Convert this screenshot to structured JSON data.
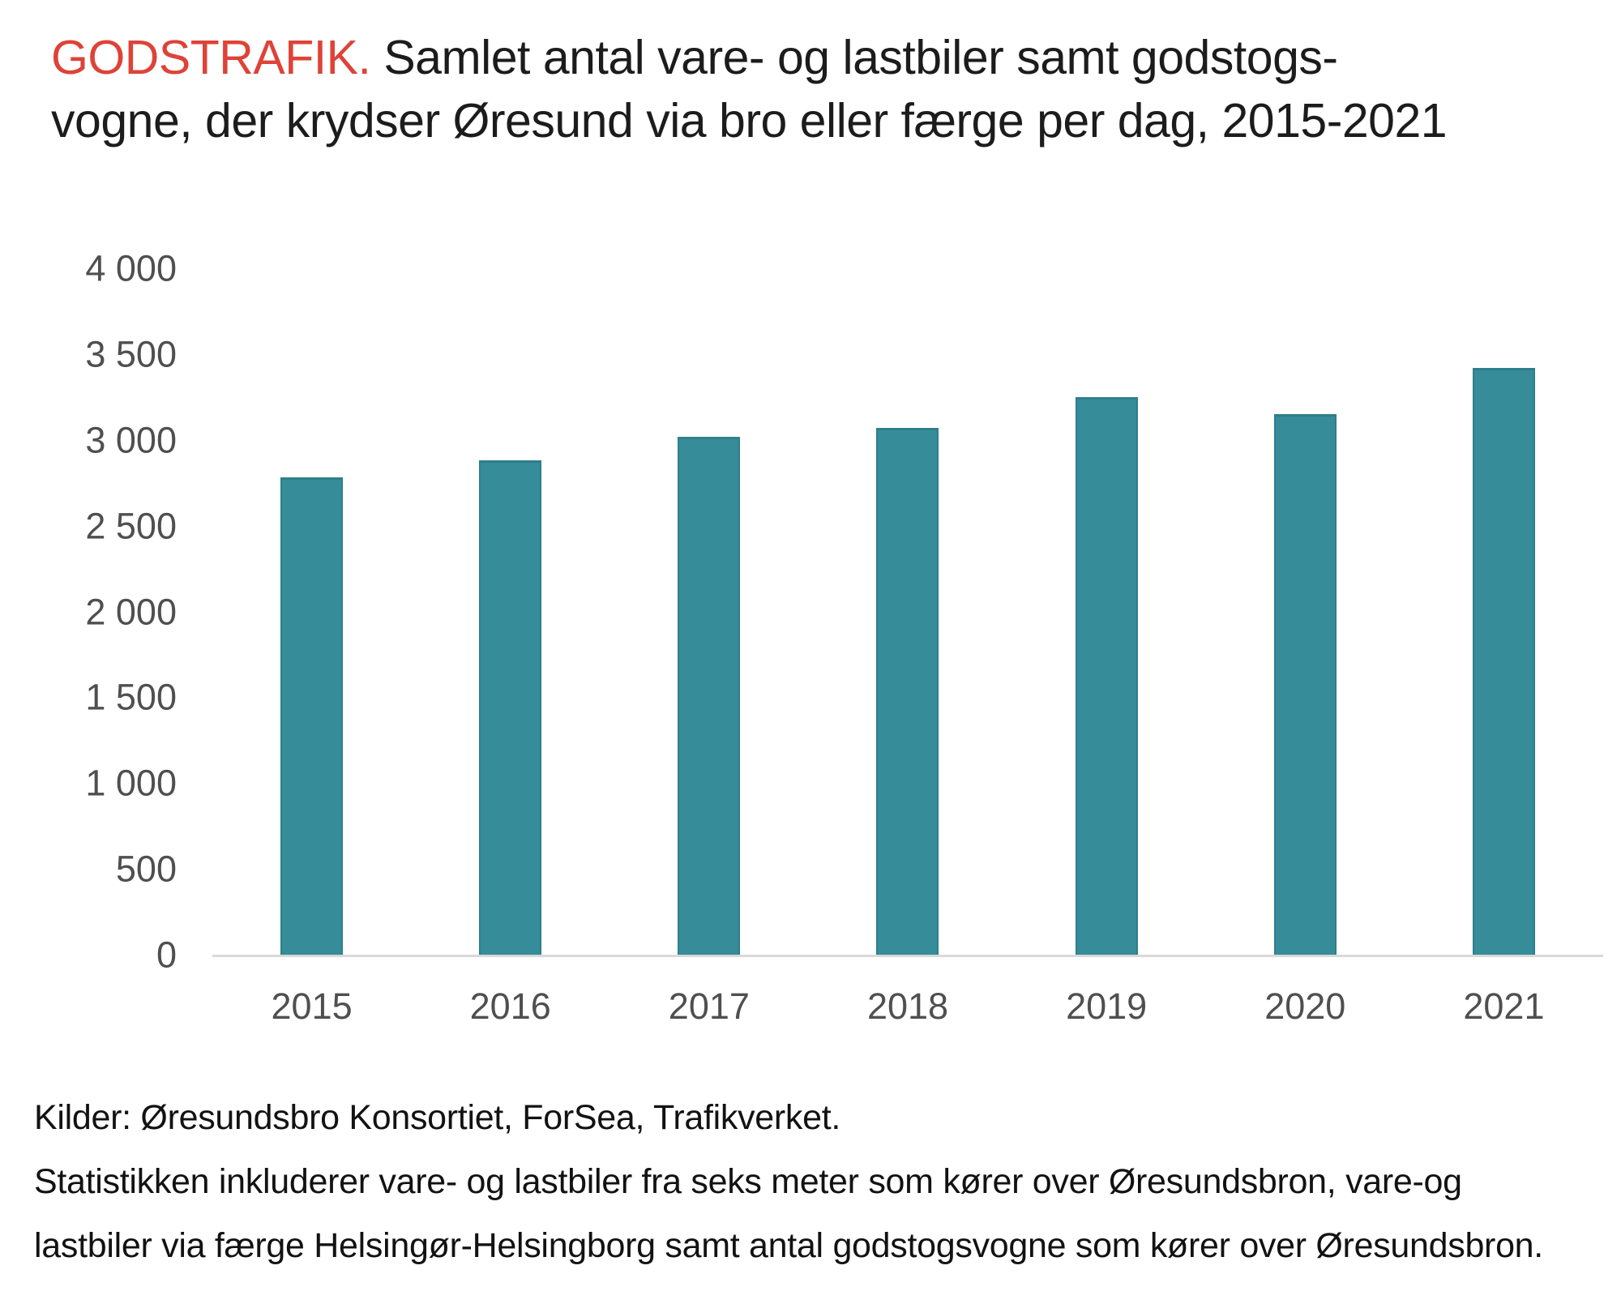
{
  "title": {
    "kicker": "GODSTRAFIK.",
    "line1": " Samlet antal vare- og lastbiler samt godstogs-",
    "line2": "vogne, der krydser Øresund via bro eller færge per dag, 2015-2021"
  },
  "colors": {
    "kicker_red": "#de4238",
    "bar": "#368c98",
    "bar_border": "#2e7f8c",
    "axis_line": "#d9d9d9",
    "tick_text": "#4f4f4f"
  },
  "chart_data": {
    "type": "bar",
    "title": "GODSTRAFIK. Samlet antal vare- og lastbiler samt godstogsvogne, der krydser Øresund via bro eller færge per dag, 2015-2021",
    "categories": [
      "2015",
      "2016",
      "2017",
      "2018",
      "2019",
      "2020",
      "2021"
    ],
    "values": [
      2780,
      2880,
      3020,
      3070,
      3250,
      3150,
      3420
    ],
    "xlabel": "",
    "ylabel": "",
    "ylim": [
      0,
      4000
    ],
    "ytick_interval": 500,
    "ytick_labels": [
      "0",
      "500",
      "1 000",
      "1 500",
      "2 000",
      "2 500",
      "3 000",
      "3 500",
      "4 000"
    ],
    "grid": false,
    "legend_position": "none",
    "bar_color": "#368c98"
  },
  "footer": {
    "line1": "Kilder: Øresundsbro Konsortiet, ForSea, Trafikverket.",
    "line2": "Statistikken inkluderer vare- og lastbiler fra seks meter som kører over Øresundsbron, vare-og",
    "line3": "lastbiler via færge Helsingør-Helsingborg samt antal godstogsvogne som kører over Øresundsbron."
  }
}
